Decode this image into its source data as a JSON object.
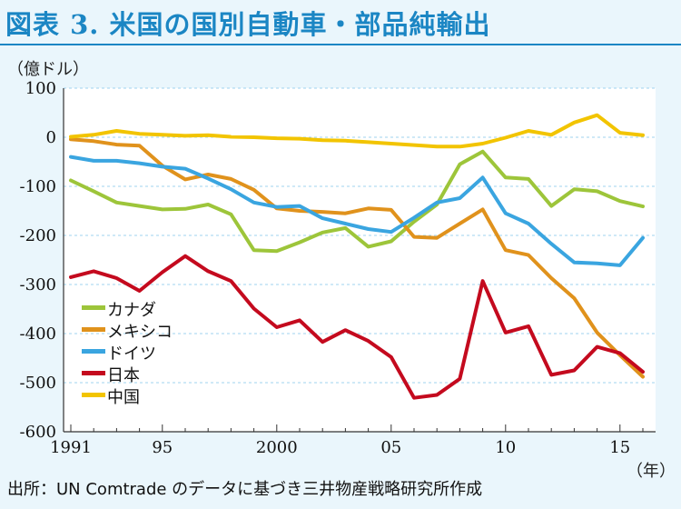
{
  "title": "図表 3. 米国の国別自動車・部品純輸出",
  "unit_label": "（億ドル）",
  "x_unit_label": "（年）",
  "source": "出所：UN Comtrade のデータに基づき三井物産戦略研究所作成",
  "chart_data": {
    "type": "line",
    "title": "図表 3. 米国の国別自動車・部品純輸出",
    "ylabel": "（億ドル）",
    "xlabel": "（年）",
    "ylim": [
      -600,
      100
    ],
    "xlim": [
      1991,
      2016
    ],
    "yticks": [
      100,
      0,
      -100,
      -200,
      -300,
      -400,
      -500,
      -600
    ],
    "xticks": [
      {
        "value": 1991,
        "label": "1991"
      },
      {
        "value": 1995,
        "label": "95"
      },
      {
        "value": 2000,
        "label": "2000"
      },
      {
        "value": 2005,
        "label": "05"
      },
      {
        "value": 2010,
        "label": "10"
      },
      {
        "value": 2015,
        "label": "15"
      }
    ],
    "grid": true,
    "legend_position": "lower-left",
    "x": [
      1991,
      1992,
      1993,
      1994,
      1995,
      1996,
      1997,
      1998,
      1999,
      2000,
      2001,
      2002,
      2003,
      2004,
      2005,
      2006,
      2007,
      2008,
      2009,
      2010,
      2011,
      2012,
      2013,
      2014,
      2015,
      2016
    ],
    "series": [
      {
        "name": "カナダ",
        "color": "#9dc53a",
        "values": [
          -88,
          -110,
          -133,
          -140,
          -147,
          -146,
          -137,
          -157,
          -230,
          -232,
          -214,
          -194,
          -185,
          -223,
          -212,
          -172,
          -137,
          -55,
          -29,
          -82,
          -85,
          -140,
          -106,
          -110,
          -130,
          -141
        ]
      },
      {
        "name": "メキシコ",
        "color": "#e0921c",
        "values": [
          -4,
          -8,
          -15,
          -17,
          -58,
          -86,
          -76,
          -85,
          -107,
          -145,
          -150,
          -152,
          -155,
          -145,
          -148,
          -203,
          -205,
          -176,
          -147,
          -230,
          -240,
          -287,
          -328,
          -398,
          -444,
          -488
        ]
      },
      {
        "name": "ドイツ",
        "color": "#3aa5e0",
        "values": [
          -40,
          -48,
          -48,
          -53,
          -60,
          -64,
          -84,
          -106,
          -133,
          -142,
          -140,
          -165,
          -176,
          -187,
          -193,
          -164,
          -133,
          -124,
          -82,
          -155,
          -176,
          -217,
          -255,
          -257,
          -261,
          -205
        ]
      },
      {
        "name": "日本",
        "color": "#c40a1e",
        "values": [
          -285,
          -273,
          -287,
          -313,
          -275,
          -242,
          -273,
          -293,
          -349,
          -387,
          -373,
          -417,
          -393,
          -415,
          -448,
          -531,
          -525,
          -492,
          -293,
          -398,
          -385,
          -484,
          -475,
          -427,
          -440,
          -478
        ]
      },
      {
        "name": "中国",
        "color": "#f2c400",
        "values": [
          1,
          5,
          13,
          7,
          5,
          3,
          4,
          1,
          0,
          -2,
          -3,
          -6,
          -7,
          -10,
          -13,
          -16,
          -19,
          -19,
          -13,
          -1,
          13,
          5,
          30,
          45,
          9,
          4
        ]
      }
    ]
  }
}
